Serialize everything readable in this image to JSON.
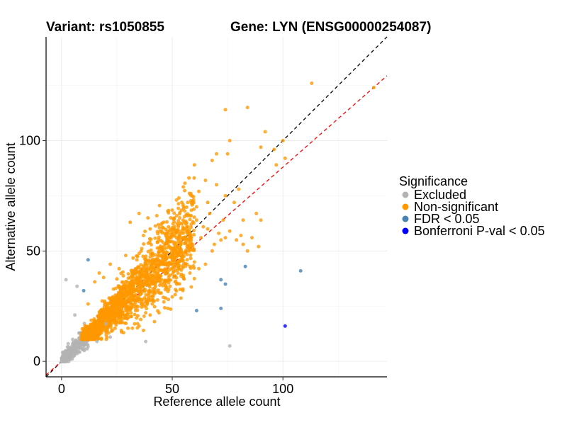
{
  "chart_data": {
    "type": "scatter",
    "title_left": "Variant: rs1050855",
    "title_right": "Gene: LYN (ENSG00000254087)",
    "xlabel": "Reference allele count",
    "ylabel": "Alternative allele count",
    "xlim": [
      -7,
      147
    ],
    "ylim": [
      -7,
      147
    ],
    "xticks": [
      0,
      50,
      100
    ],
    "yticks": [
      0,
      50,
      100
    ],
    "grid": true,
    "legend": {
      "title": "Significance",
      "position": "right",
      "entries": [
        {
          "label": "Excluded",
          "color": "#b3b3b3"
        },
        {
          "label": "Non-significant",
          "color": "#ff9900"
        },
        {
          "label": "FDR < 0.05",
          "color": "#4682b4"
        },
        {
          "label": "Bonferroni P-val < 0.05",
          "color": "#0000ff"
        }
      ]
    },
    "reference_lines": [
      {
        "name": "identity",
        "slope": 1.0,
        "intercept": 0,
        "color": "#000000",
        "dash": true
      },
      {
        "name": "fit",
        "slope": 0.88,
        "intercept": 0,
        "color": "#ff0000",
        "dash": true
      }
    ],
    "generated_series": [
      {
        "name": "Excluded",
        "color": "#b3b3b3",
        "count": 320,
        "x_range": [
          0,
          12
        ],
        "ratio_mean": 1.0,
        "ratio_sd": 0.22,
        "seed": 11
      },
      {
        "name": "Non-significant",
        "color": "#ff9900",
        "count": 2100,
        "x_range": [
          9,
          60
        ],
        "ratio_mean": 0.98,
        "ratio_sd": 0.18,
        "seed": 23
      }
    ],
    "series": [
      {
        "name": "Excluded",
        "color": "#b3b3b3",
        "points": [
          [
            2,
            37
          ],
          [
            7,
            34
          ],
          [
            76,
            7
          ],
          [
            38,
            9
          ],
          [
            20,
            17
          ],
          [
            22,
            11
          ],
          [
            16,
            9
          ],
          [
            4,
            2
          ],
          [
            3,
            8
          ],
          [
            6,
            21
          ]
        ]
      },
      {
        "name": "Non-significant",
        "color": "#ff9900",
        "points": [
          [
            113,
            126
          ],
          [
            141,
            124
          ],
          [
            84,
            115
          ],
          [
            74,
            114
          ],
          [
            92,
            104
          ],
          [
            76,
            100
          ],
          [
            90,
            97
          ],
          [
            100,
            100
          ],
          [
            96,
            96
          ],
          [
            101,
            92
          ],
          [
            97,
            89
          ],
          [
            70,
            94
          ],
          [
            75,
            94
          ],
          [
            68,
            91
          ],
          [
            60,
            89
          ],
          [
            65,
            82
          ],
          [
            70,
            80
          ],
          [
            74,
            75
          ],
          [
            78,
            72
          ],
          [
            80,
            78
          ],
          [
            88,
            67
          ],
          [
            90,
            64
          ],
          [
            82,
            64
          ],
          [
            81,
            57
          ],
          [
            76,
            59
          ],
          [
            71,
            58
          ],
          [
            74,
            56
          ],
          [
            69,
            53
          ],
          [
            72,
            55
          ],
          [
            61,
            64
          ],
          [
            64,
            61
          ],
          [
            58,
            66
          ],
          [
            57,
            61
          ],
          [
            66,
            60
          ],
          [
            63,
            56
          ],
          [
            68,
            50
          ],
          [
            82,
            53
          ],
          [
            84,
            50
          ],
          [
            79,
            55
          ],
          [
            89,
            52
          ],
          [
            86,
            56
          ],
          [
            73,
            64
          ],
          [
            67,
            67
          ],
          [
            61,
            70
          ],
          [
            57,
            72
          ],
          [
            53,
            74
          ],
          [
            55,
            79
          ],
          [
            62,
            77
          ],
          [
            66,
            72
          ],
          [
            45,
            62
          ],
          [
            48,
            68
          ],
          [
            52,
            66
          ],
          [
            40,
            60
          ],
          [
            43,
            66
          ],
          [
            51,
            60
          ],
          [
            37,
            57
          ],
          [
            31,
            63
          ],
          [
            35,
            67
          ],
          [
            39,
            65
          ],
          [
            50,
            58
          ],
          [
            47,
            48
          ],
          [
            54,
            54
          ],
          [
            59,
            53
          ],
          [
            34,
            46
          ],
          [
            29,
            48
          ],
          [
            26,
            42
          ],
          [
            22,
            44
          ],
          [
            53,
            43
          ],
          [
            58,
            43
          ],
          [
            60,
            45
          ],
          [
            56,
            50
          ],
          [
            65,
            44
          ],
          [
            12,
            26
          ],
          [
            15,
            36
          ],
          [
            17,
            40
          ],
          [
            19,
            38
          ],
          [
            44,
            22
          ],
          [
            48,
            24
          ],
          [
            37,
            14
          ],
          [
            42,
            18
          ],
          [
            40,
            21
          ],
          [
            33,
            17
          ],
          [
            30,
            15
          ],
          [
            27,
            14
          ],
          [
            35,
            16
          ],
          [
            45,
            31
          ],
          [
            49,
            34
          ],
          [
            55,
            38
          ],
          [
            58,
            40
          ],
          [
            62,
            42
          ],
          [
            46,
            29
          ],
          [
            52,
            35
          ],
          [
            41,
            26
          ],
          [
            38,
            22
          ],
          [
            27,
            18
          ],
          [
            24,
            20
          ],
          [
            28,
            13
          ],
          [
            23,
            14
          ]
        ]
      },
      {
        "name": "FDR < 0.05",
        "color": "#4682b4",
        "points": [
          [
            12,
            46
          ],
          [
            10,
            32
          ],
          [
            61,
            23
          ],
          [
            72,
            24
          ],
          [
            72,
            37
          ],
          [
            74,
            35
          ],
          [
            83,
            43
          ],
          [
            108,
            41
          ]
        ]
      },
      {
        "name": "Bonferroni P-val < 0.05",
        "color": "#0000ff",
        "points": [
          [
            101,
            16
          ]
        ]
      }
    ]
  }
}
